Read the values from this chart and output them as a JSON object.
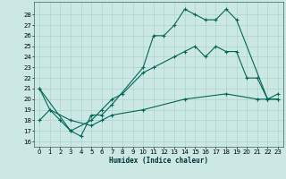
{
  "xlabel": "Humidex (Indice chaleur)",
  "background_color": "#cce8e4",
  "grid_color": "#aad4cc",
  "line_color": "#006655",
  "xlim": [
    -0.5,
    23.5
  ],
  "ylim": [
    15.5,
    29.2
  ],
  "yticks": [
    16,
    17,
    18,
    19,
    20,
    21,
    22,
    23,
    24,
    25,
    26,
    27,
    28
  ],
  "xticks": [
    0,
    1,
    2,
    3,
    4,
    5,
    6,
    7,
    8,
    9,
    10,
    11,
    12,
    13,
    14,
    15,
    16,
    17,
    18,
    19,
    20,
    21,
    22,
    23
  ],
  "curve1_x": [
    0,
    1,
    2,
    3,
    4,
    5,
    6,
    7,
    10,
    11,
    12,
    13,
    14,
    15,
    16,
    17,
    18,
    19,
    22,
    23
  ],
  "curve1_y": [
    21,
    19,
    18,
    17,
    16.5,
    18.5,
    18.5,
    19.5,
    23,
    26,
    26,
    27,
    28.5,
    28,
    27.5,
    27.5,
    28.5,
    27.5,
    20,
    20
  ],
  "curve2_x": [
    0,
    3,
    5,
    6,
    7,
    8,
    10,
    11,
    13,
    14,
    15,
    16,
    17,
    18,
    19,
    20,
    21,
    22,
    23
  ],
  "curve2_y": [
    21,
    17,
    18,
    19,
    20,
    20.5,
    22.5,
    23,
    24,
    24.5,
    25,
    24,
    25,
    24.5,
    24.5,
    22,
    22,
    20,
    20
  ],
  "curve3_x": [
    0,
    1,
    3,
    5,
    6,
    7,
    10,
    14,
    18,
    21,
    22,
    23
  ],
  "curve3_y": [
    18,
    19,
    18,
    17.5,
    18,
    18.5,
    19,
    20,
    20.5,
    20,
    20,
    20.5
  ]
}
